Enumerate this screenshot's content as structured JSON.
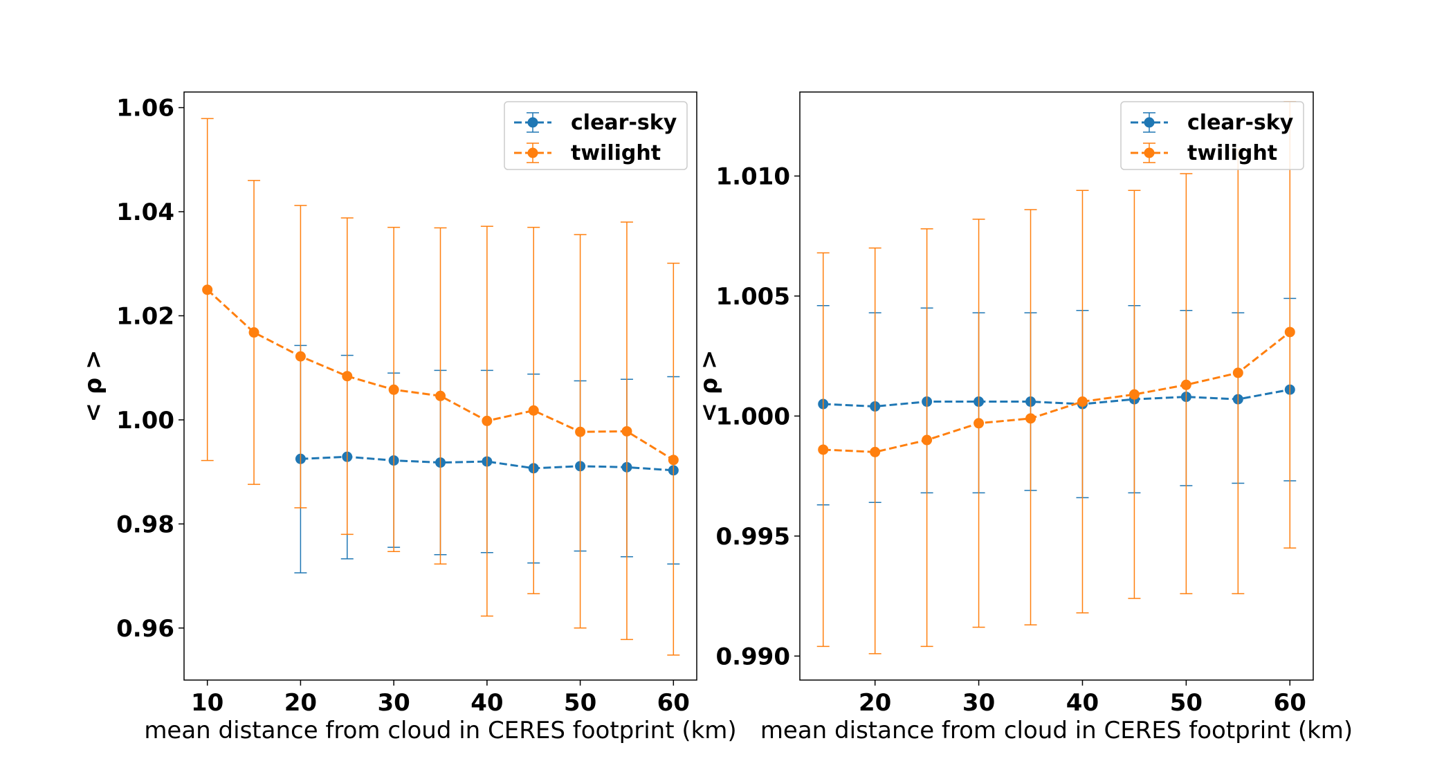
{
  "chart_data": [
    {
      "type": "line",
      "title": "",
      "xlabel": "mean distance from cloud in CERES footprint (km)",
      "ylabel": "< ρ >",
      "xlim": [
        7.5,
        62.5
      ],
      "ylim": [
        0.95,
        1.063
      ],
      "xticks": [
        10,
        20,
        30,
        40,
        50,
        60
      ],
      "xtick_labels": [
        "10",
        "20",
        "30",
        "40",
        "50",
        "60"
      ],
      "yticks": [
        0.96,
        0.98,
        1.0,
        1.02,
        1.04,
        1.06
      ],
      "ytick_labels": [
        "0.96",
        "0.98",
        "1.00",
        "1.02",
        "1.04",
        "1.06"
      ],
      "grid": false,
      "legend_position": "top-right",
      "series": [
        {
          "name": "clear-sky",
          "color": "#1f77b4",
          "x": [
            20,
            25,
            30,
            35,
            40,
            45,
            50,
            55,
            60
          ],
          "y": [
            0.9925,
            0.9929,
            0.9922,
            0.9918,
            0.992,
            0.9907,
            0.9911,
            0.9909,
            0.9903
          ],
          "err_low": [
            0.9706,
            0.9733,
            0.9755,
            0.9741,
            0.9745,
            0.9725,
            0.9748,
            0.9737,
            0.9723
          ],
          "err_high": [
            1.0143,
            1.0124,
            1.009,
            1.0095,
            1.0095,
            1.0088,
            1.0075,
            1.0078,
            1.0083
          ]
        },
        {
          "name": "twilight",
          "color": "#ff7f0e",
          "x": [
            10,
            15,
            20,
            25,
            30,
            35,
            40,
            45,
            50,
            55,
            60
          ],
          "y": [
            1.025,
            1.0168,
            1.0122,
            1.0084,
            1.0058,
            1.0046,
            0.9998,
            1.0018,
            0.9977,
            0.9978,
            0.9923
          ],
          "err_low": [
            0.9922,
            0.9876,
            0.9831,
            0.978,
            0.9747,
            0.9723,
            0.9623,
            0.9666,
            0.96,
            0.9578,
            0.9548
          ],
          "err_high": [
            1.0579,
            1.046,
            1.0412,
            1.0388,
            1.037,
            1.0369,
            1.0372,
            1.037,
            1.0356,
            1.038,
            1.0301
          ]
        }
      ]
    },
    {
      "type": "line",
      "title": "",
      "xlabel": "mean distance from cloud in CERES footprint (km)",
      "ylabel": "< ρ >",
      "xlim": [
        12.75,
        62.25
      ],
      "ylim": [
        0.989,
        1.0135
      ],
      "xticks": [
        20,
        30,
        40,
        50,
        60
      ],
      "xtick_labels": [
        "20",
        "30",
        "40",
        "50",
        "60"
      ],
      "yticks": [
        0.99,
        0.995,
        1.0,
        1.005,
        1.01
      ],
      "ytick_labels": [
        "0.990",
        "0.995",
        "1.000",
        "1.005",
        "1.010"
      ],
      "grid": false,
      "legend_position": "top-right",
      "series": [
        {
          "name": "clear-sky",
          "color": "#1f77b4",
          "x": [
            15,
            20,
            25,
            30,
            35,
            40,
            45,
            50,
            55,
            60
          ],
          "y": [
            1.0005,
            1.0004,
            1.0006,
            1.0006,
            1.0006,
            1.0005,
            1.0007,
            1.0008,
            1.0007,
            1.0011
          ],
          "err_low": [
            0.9963,
            0.9964,
            0.9968,
            0.9968,
            0.9969,
            0.9966,
            0.9968,
            0.9971,
            0.9972,
            0.9973
          ],
          "err_high": [
            1.0046,
            1.0043,
            1.0045,
            1.0043,
            1.0043,
            1.0044,
            1.0046,
            1.0044,
            1.0043,
            1.0049
          ]
        },
        {
          "name": "twilight",
          "color": "#ff7f0e",
          "x": [
            15,
            20,
            25,
            30,
            35,
            40,
            45,
            50,
            55,
            60
          ],
          "y": [
            0.9986,
            0.9985,
            0.999,
            0.9997,
            0.9999,
            1.0006,
            1.0009,
            1.0013,
            1.0018,
            1.0035
          ],
          "err_low": [
            0.9904,
            0.9901,
            0.9904,
            0.9912,
            0.9913,
            0.9918,
            0.9924,
            0.9926,
            0.9926,
            0.9945
          ],
          "err_high": [
            1.0068,
            1.007,
            1.0078,
            1.0082,
            1.0086,
            1.0094,
            1.0094,
            1.0101,
            1.0111,
            1.0131
          ]
        }
      ]
    }
  ]
}
